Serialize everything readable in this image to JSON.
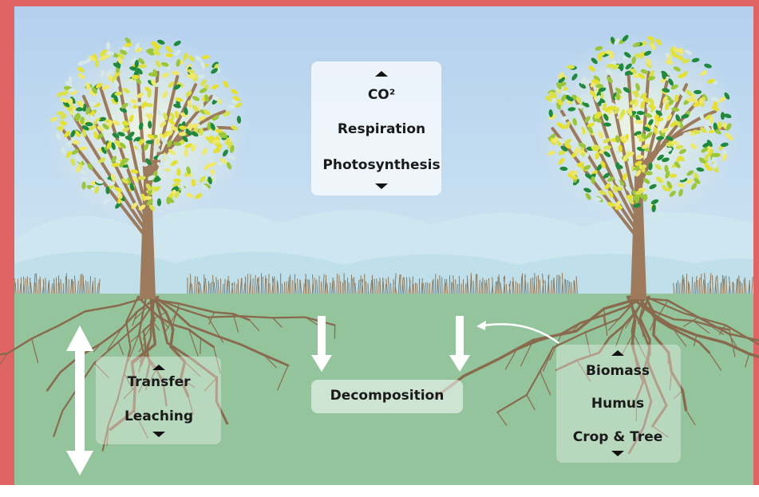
{
  "boxes": [
    {
      "lines": [
        "CO²",
        "Respiration",
        "Photosynthesis"
      ]
    },
    {
      "lines": [
        "Transfer",
        "Leaching"
      ]
    },
    {
      "lines": [
        "Decomposition"
      ]
    },
    {
      "lines": [
        "Biomass",
        "Humus",
        "Crop & Tree"
      ]
    }
  ]
}
